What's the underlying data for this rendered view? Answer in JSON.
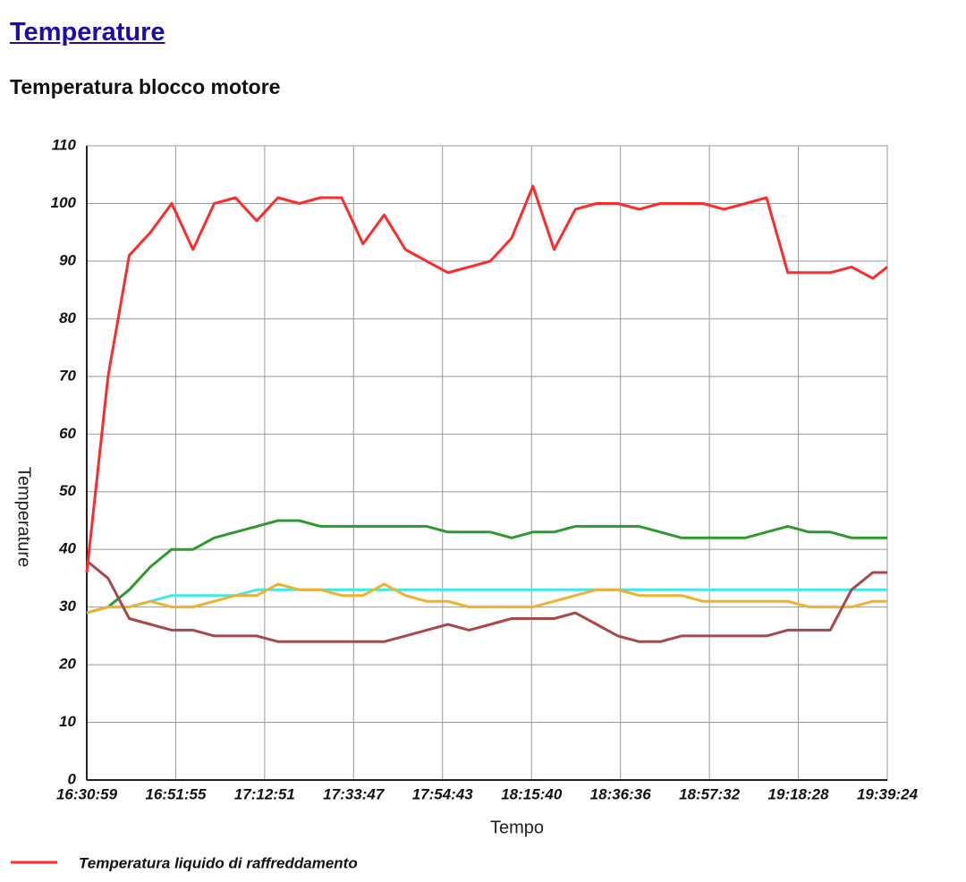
{
  "heading": "Temperature",
  "chart_data": {
    "type": "line",
    "title": "Temperatura blocco motore",
    "x_label": "Tempo",
    "y_label": "Temperature",
    "x": [
      "16:30:59",
      "16:35:59",
      "16:40:59",
      "16:45:59",
      "16:50:59",
      "16:55:59",
      "17:00:59",
      "17:05:59",
      "17:10:59",
      "17:15:59",
      "17:20:59",
      "17:25:59",
      "17:30:59",
      "17:35:59",
      "17:40:59",
      "17:45:59",
      "17:50:59",
      "17:55:59",
      "18:00:59",
      "18:05:59",
      "18:10:59",
      "18:15:59",
      "18:20:59",
      "18:25:59",
      "18:30:59",
      "18:35:59",
      "18:40:59",
      "18:45:59",
      "18:50:59",
      "18:55:59",
      "19:00:59",
      "19:05:59",
      "19:10:59",
      "19:15:59",
      "19:20:59",
      "19:25:59",
      "19:30:59",
      "19:35:59",
      "19:39:24"
    ],
    "xlim": [
      "16:30:59",
      "19:39:24"
    ],
    "xticks": [
      "16:30:59",
      "16:51:55",
      "17:12:51",
      "17:33:47",
      "17:54:43",
      "18:15:40",
      "18:36:36",
      "18:57:32",
      "19:18:28",
      "19:39:24"
    ],
    "ylim": [
      0,
      110
    ],
    "yticks": [
      0,
      10,
      20,
      30,
      40,
      50,
      60,
      70,
      80,
      90,
      100,
      110
    ],
    "grid": true,
    "series": [
      {
        "color": "#3ee8ec",
        "values": [
          29,
          30,
          30,
          31,
          32,
          32,
          32,
          32,
          33,
          33,
          33,
          33,
          33,
          33,
          33,
          33,
          33,
          33,
          33,
          33,
          33,
          33,
          33,
          33,
          33,
          33,
          33,
          33,
          33,
          33,
          33,
          33,
          33,
          33,
          33,
          33,
          33,
          33,
          33
        ]
      },
      {
        "color": "#2e9a2e",
        "values": [
          29,
          30,
          33,
          37,
          40,
          40,
          42,
          43,
          44,
          45,
          45,
          44,
          44,
          44,
          44,
          44,
          44,
          43,
          43,
          43,
          42,
          43,
          43,
          44,
          44,
          44,
          44,
          43,
          42,
          42,
          42,
          42,
          43,
          44,
          43,
          43,
          42,
          42,
          42
        ]
      },
      {
        "color": "#f0b030",
        "values": [
          29,
          30,
          30,
          31,
          30,
          30,
          31,
          32,
          32,
          34,
          33,
          33,
          32,
          32,
          34,
          32,
          31,
          31,
          30,
          30,
          30,
          30,
          31,
          32,
          33,
          33,
          32,
          32,
          32,
          31,
          31,
          31,
          31,
          31,
          30,
          30,
          30,
          31,
          31
        ]
      },
      {
        "color": "#a84848",
        "values": [
          38,
          35,
          28,
          27,
          26,
          26,
          25,
          25,
          25,
          24,
          24,
          24,
          24,
          24,
          24,
          25,
          26,
          27,
          26,
          27,
          28,
          28,
          28,
          29,
          27,
          25,
          24,
          24,
          25,
          25,
          25,
          25,
          25,
          26,
          26,
          26,
          33,
          36,
          36
        ]
      },
      {
        "name": "Temperatura liquido di raffreddamento",
        "color": "#ff2a2a",
        "values": [
          36,
          70,
          91,
          95,
          100,
          92,
          100,
          101,
          97,
          101,
          100,
          101,
          101,
          93,
          98,
          92,
          90,
          88,
          89,
          90,
          94,
          103,
          92,
          99,
          100,
          100,
          99,
          100,
          100,
          100,
          99,
          100,
          101,
          88,
          88,
          88,
          89,
          87,
          89
        ]
      }
    ]
  }
}
